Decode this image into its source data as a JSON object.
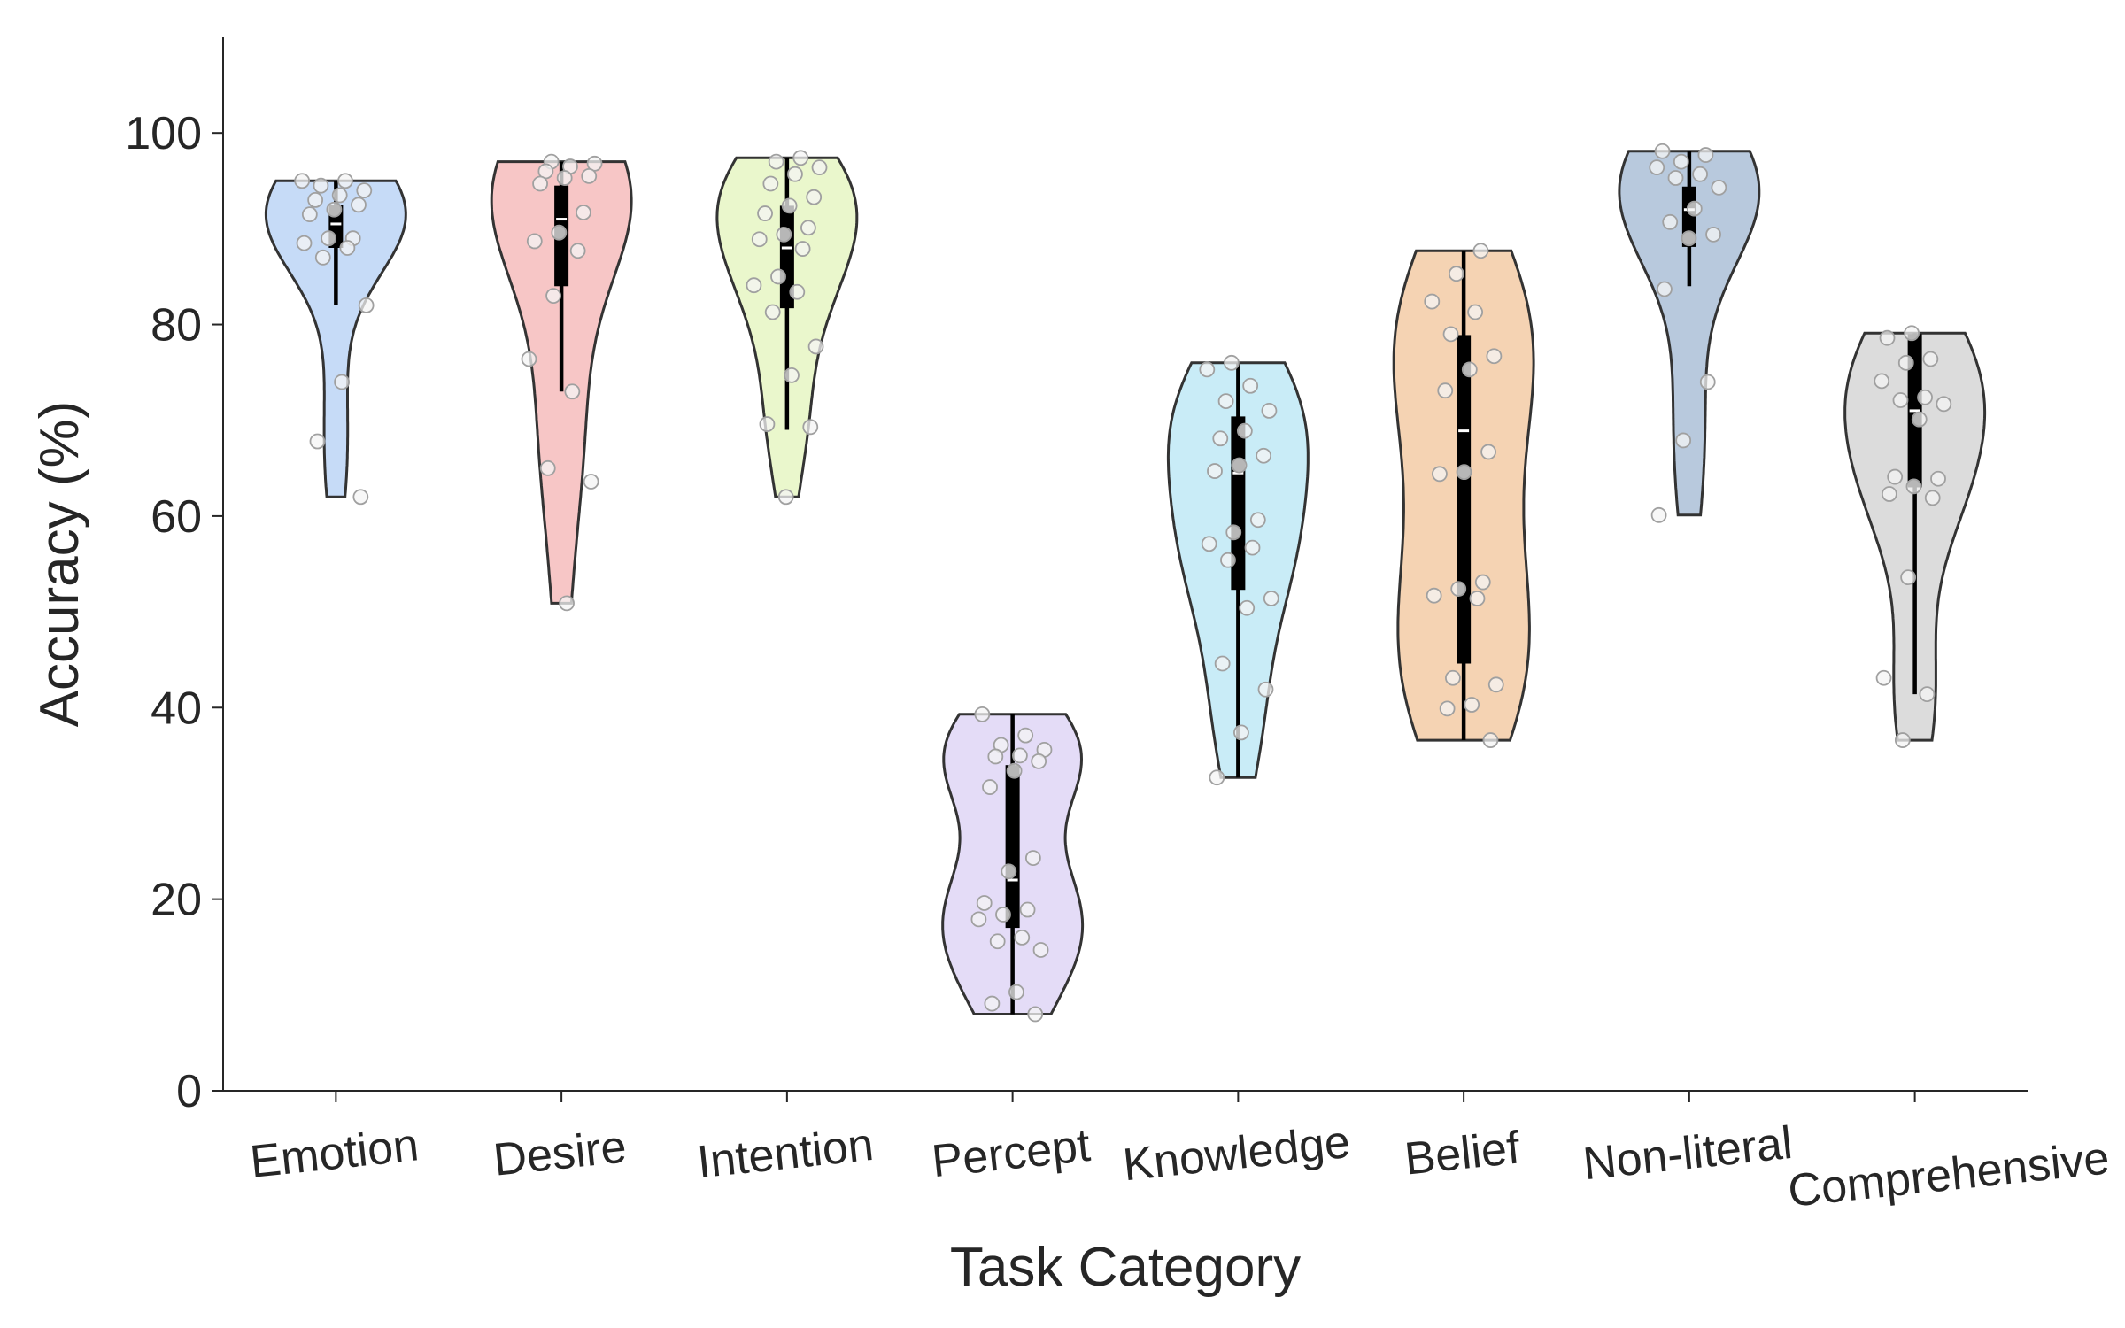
{
  "chart_data": {
    "type": "violin",
    "xlabel": "Task Category",
    "ylabel": "Accuracy (%)",
    "categories": [
      "Emotion",
      "Desire",
      "Intention",
      "Percept",
      "Knowledge",
      "Belief",
      "Non-literal",
      "Comprehensive"
    ],
    "ylim": [
      0,
      110
    ],
    "yticks": [
      0,
      20,
      40,
      60,
      80,
      100
    ],
    "violins": [
      {
        "color": "#c6dbf7",
        "points": [
          95,
          95,
          94.5,
          94,
          93.5,
          93,
          92.5,
          92,
          91.5,
          89,
          89,
          88.5,
          88,
          87,
          82,
          74,
          67.8,
          62
        ],
        "q1": 88,
        "median": 90.5,
        "q3": 92.5,
        "whisker_low": 82,
        "whisker_high": 95
      },
      {
        "color": "#f7c6c6",
        "points": [
          97,
          96.8,
          96.5,
          96,
          95.5,
          95.3,
          94.7,
          91.7,
          89.6,
          88.7,
          87.7,
          83,
          76.4,
          73,
          65,
          63.6,
          50.9
        ],
        "q1": 84,
        "median": 91,
        "q3": 94.5,
        "whisker_low": 73,
        "whisker_high": 97
      },
      {
        "color": "#eaf7cc",
        "points": [
          97.4,
          97,
          96.4,
          95.7,
          94.7,
          93.3,
          92.4,
          91.6,
          90.1,
          89.4,
          88.9,
          87.9,
          85,
          84.1,
          83.4,
          81.3,
          77.7,
          74.7,
          69.6,
          69.3,
          62
        ],
        "q1": 81.7,
        "median": 88,
        "q3": 92.4,
        "whisker_low": 69,
        "whisker_high": 97.4
      },
      {
        "color": "#e4dcf7",
        "points": [
          39.3,
          37.1,
          36.1,
          35.6,
          35,
          34.9,
          34.4,
          33.4,
          31.7,
          24.3,
          22.9,
          19.6,
          18.9,
          18.4,
          17.9,
          16,
          15.6,
          14.7,
          10.3,
          9.1,
          8
        ],
        "q1": 17,
        "median": 22,
        "q3": 34,
        "whisker_low": 8,
        "whisker_high": 39.3
      },
      {
        "color": "#c9ecf7",
        "points": [
          76,
          75.3,
          73.6,
          72,
          71,
          68.9,
          68.1,
          66.3,
          65.3,
          64.7,
          59.6,
          58.3,
          57.1,
          56.7,
          55.4,
          51.4,
          50.4,
          44.6,
          41.9,
          37.4,
          32.7
        ],
        "q1": 52.3,
        "median": 64.5,
        "q3": 70.4,
        "whisker_low": 32.7,
        "whisker_high": 76
      },
      {
        "color": "#f5d3b3",
        "points": [
          87.7,
          85.3,
          82.4,
          81.3,
          79,
          76.7,
          75.3,
          73.1,
          66.7,
          64.6,
          64.4,
          53.1,
          52.4,
          51.7,
          51.4,
          43.1,
          42.4,
          40.3,
          39.9,
          36.6
        ],
        "q1": 44.6,
        "median": 68.9,
        "q3": 78.9,
        "whisker_low": 36.6,
        "whisker_high": 87.7
      },
      {
        "color": "#b8c9dd",
        "points": [
          98.1,
          97.7,
          97,
          96.4,
          95.7,
          95.3,
          94.3,
          92.1,
          90.7,
          89.4,
          89,
          83.7,
          74,
          67.9,
          60.1
        ],
        "q1": 88.1,
        "median": 92,
        "q3": 94.4,
        "whisker_low": 84,
        "whisker_high": 98.1
      },
      {
        "color": "#dcdcdc",
        "points": [
          79.1,
          78.6,
          76.4,
          76,
          74.1,
          72.4,
          72.1,
          71.7,
          70.1,
          64.1,
          63.9,
          63.1,
          62.3,
          61.9,
          53.6,
          43.1,
          41.4,
          36.6
        ],
        "q1": 63,
        "median": 71,
        "q3": 79,
        "whisker_low": 41.4,
        "whisker_high": 79.1
      }
    ]
  }
}
